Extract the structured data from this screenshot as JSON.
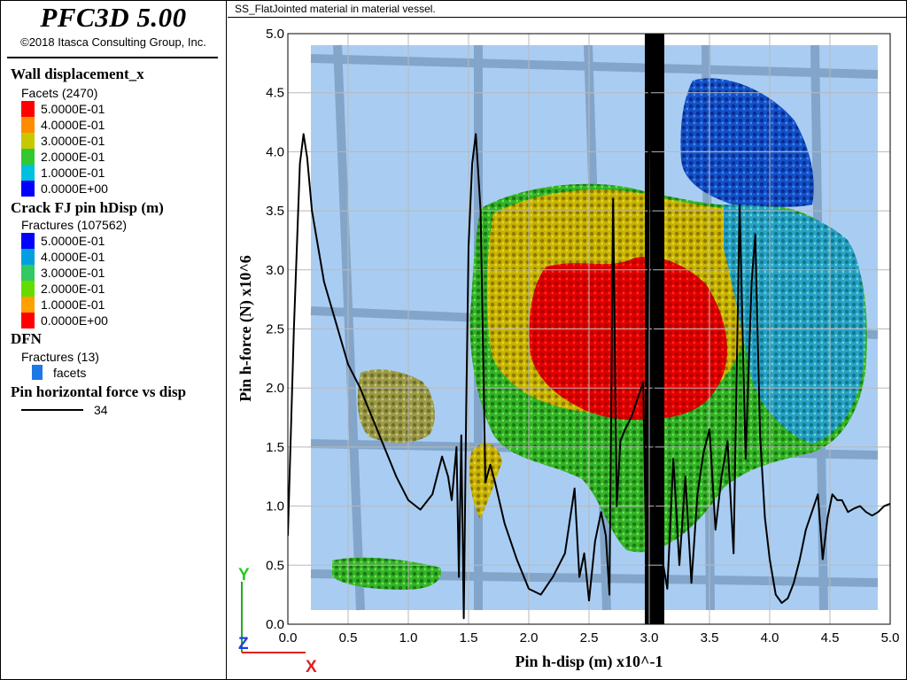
{
  "app": {
    "title": "PFC3D 5.00",
    "copyright": "©2018 Itasca Consulting Group, Inc."
  },
  "plot_title": "SS_FlatJointed material in material vessel.",
  "legend": {
    "wall": {
      "title": "Wall displacement_x",
      "subtitle": "Facets (2470)",
      "entries": [
        {
          "label": "5.0000E-01",
          "color": "#ff0000"
        },
        {
          "label": "4.0000E-01",
          "color": "#ff8c00"
        },
        {
          "label": "3.0000E-01",
          "color": "#c8c800"
        },
        {
          "label": "2.0000E-01",
          "color": "#32c832"
        },
        {
          "label": "1.0000E-01",
          "color": "#00c0e0"
        },
        {
          "label": "0.0000E+00",
          "color": "#0000ff"
        }
      ]
    },
    "crack": {
      "title": "Crack FJ pin hDisp (m)",
      "subtitle": "Fractures (107562)",
      "entries": [
        {
          "label": "5.0000E-01",
          "color": "#0000ff"
        },
        {
          "label": "4.0000E-01",
          "color": "#00a0e0"
        },
        {
          "label": "3.0000E-01",
          "color": "#32c864"
        },
        {
          "label": "2.0000E-01",
          "color": "#64dc00"
        },
        {
          "label": "1.0000E-01",
          "color": "#ffa000"
        },
        {
          "label": "0.0000E+00",
          "color": "#ff0000"
        }
      ]
    },
    "dfn": {
      "title": "DFN",
      "subtitle": "Fractures (13)",
      "entry": {
        "label": "facets",
        "color": "#1e78e6"
      }
    },
    "pin": {
      "title": "Pin horizontal force vs disp",
      "entry": {
        "label": "34",
        "color": "#000000"
      }
    }
  },
  "axes": {
    "x": "X",
    "y": "Y",
    "z": "Z"
  },
  "chart_data": {
    "type": "line",
    "title": "",
    "xlabel": "Pin h-disp (m) x10^-1",
    "ylabel": "Pin h-force (N) x10^6",
    "xlim": [
      0,
      5
    ],
    "ylim": [
      0,
      5
    ],
    "xticks": [
      "0.0",
      "0.5",
      "1.0",
      "1.5",
      "2.0",
      "2.5",
      "3.0",
      "3.5",
      "4.0",
      "4.5",
      "5.0"
    ],
    "yticks": [
      "0.0",
      "0.5",
      "1.0",
      "1.5",
      "2.0",
      "2.5",
      "3.0",
      "3.5",
      "4.0",
      "4.5",
      "5.0"
    ],
    "grid": true,
    "series": [
      {
        "name": "34",
        "color": "#000000",
        "x": [
          0.0,
          0.05,
          0.1,
          0.13,
          0.16,
          0.2,
          0.3,
          0.4,
          0.5,
          0.6,
          0.7,
          0.8,
          0.9,
          1.0,
          1.1,
          1.2,
          1.28,
          1.33,
          1.36,
          1.4,
          1.42,
          1.44,
          1.46,
          1.48,
          1.5,
          1.53,
          1.56,
          1.6,
          1.64,
          1.68,
          1.72,
          1.8,
          1.9,
          2.0,
          2.1,
          2.2,
          2.3,
          2.38,
          2.42,
          2.46,
          2.5,
          2.55,
          2.6,
          2.64,
          2.67,
          2.7,
          2.73,
          2.76,
          2.8,
          2.85,
          2.9,
          2.95,
          2.98,
          3.0,
          3.05,
          3.1,
          3.15,
          3.2,
          3.25,
          3.3,
          3.35,
          3.4,
          3.45,
          3.5,
          3.55,
          3.6,
          3.65,
          3.7,
          3.75,
          3.8,
          3.85,
          3.88,
          3.92,
          3.96,
          4.0,
          4.05,
          4.1,
          4.15,
          4.2,
          4.25,
          4.3,
          4.35,
          4.4,
          4.44,
          4.48,
          4.52,
          4.56,
          4.6,
          4.65,
          4.7,
          4.75,
          4.8,
          4.85,
          4.9,
          4.95,
          5.0
        ],
        "y": [
          0.75,
          2.5,
          3.9,
          4.15,
          3.95,
          3.5,
          2.9,
          2.55,
          2.2,
          2.0,
          1.75,
          1.5,
          1.25,
          1.05,
          0.97,
          1.1,
          1.42,
          1.25,
          1.05,
          1.5,
          0.4,
          1.6,
          0.05,
          1.8,
          3.2,
          3.9,
          4.15,
          3.5,
          1.2,
          1.35,
          1.2,
          0.85,
          0.55,
          0.3,
          0.25,
          0.4,
          0.6,
          1.15,
          0.4,
          0.6,
          0.2,
          0.7,
          0.95,
          0.75,
          0.25,
          3.6,
          1.0,
          1.55,
          1.65,
          1.75,
          1.9,
          2.05,
          0.2,
          5.0,
          0.7,
          0.6,
          0.3,
          1.4,
          0.5,
          1.25,
          0.35,
          1.1,
          1.45,
          1.65,
          0.8,
          1.25,
          1.55,
          0.6,
          3.55,
          1.4,
          2.9,
          3.3,
          1.6,
          0.9,
          0.55,
          0.25,
          0.18,
          0.22,
          0.35,
          0.55,
          0.8,
          0.95,
          1.1,
          0.55,
          0.9,
          1.1,
          1.05,
          1.05,
          0.95,
          0.98,
          1.0,
          0.95,
          0.92,
          0.95,
          1.0,
          1.02
        ]
      }
    ]
  }
}
